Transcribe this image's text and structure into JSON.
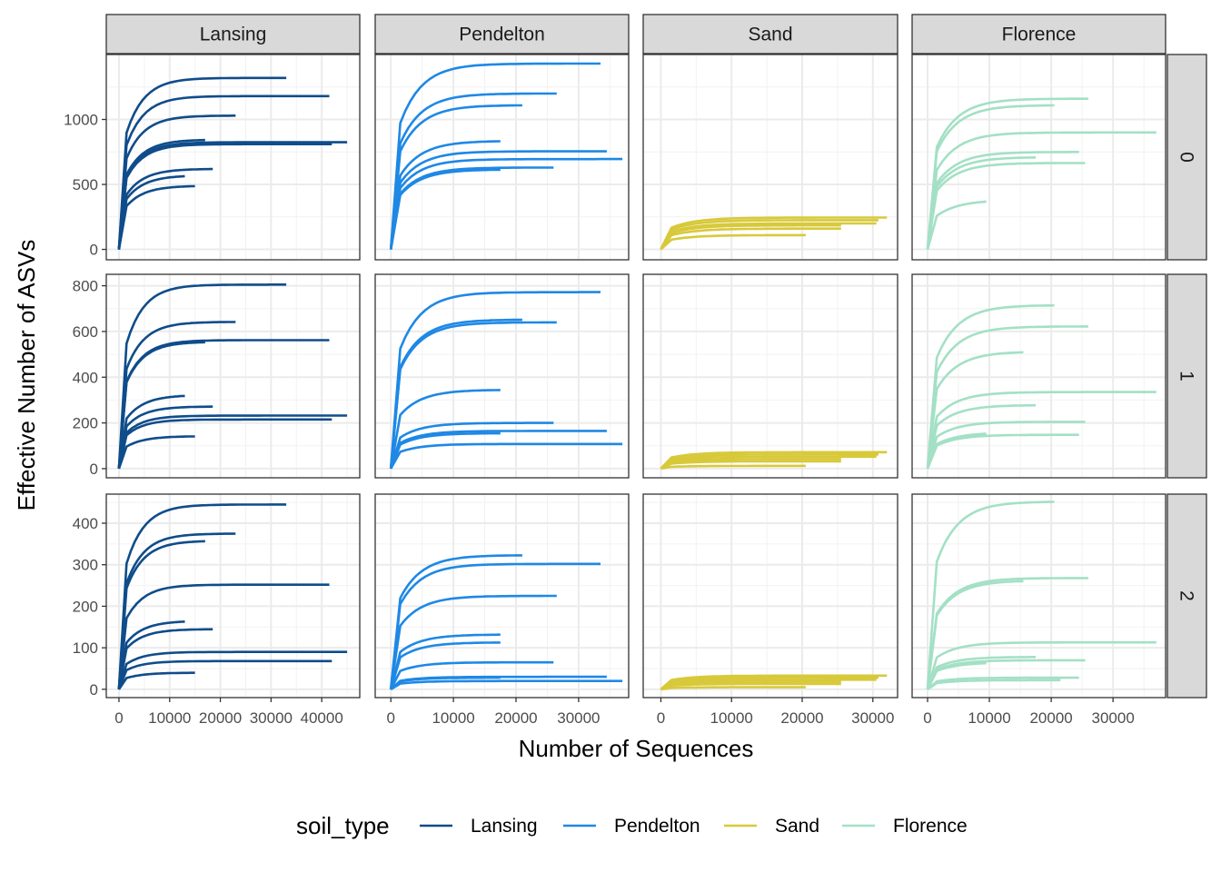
{
  "chart_data": {
    "type": "line",
    "xlabel": "Number of Sequences",
    "ylabel": "Effective Number of ASVs",
    "legend": {
      "title": "soil_type",
      "position": "bottom",
      "entries": [
        {
          "name": "Lansing",
          "color": "#0f4c8a"
        },
        {
          "name": "Pendelton",
          "color": "#1e88e5"
        },
        {
          "name": "Sand",
          "color": "#d8c93b"
        },
        {
          "name": "Florence",
          "color": "#a3e0c5"
        }
      ]
    },
    "columns": [
      "Lansing",
      "Pendelton",
      "Sand",
      "Florence"
    ],
    "rows": [
      "0",
      "1",
      "2"
    ],
    "grid": true,
    "column_xlim": [
      [
        -2500,
        47500
      ],
      [
        -2500,
        38000
      ],
      [
        -2500,
        33500
      ],
      [
        -2500,
        38500
      ]
    ],
    "column_xticks": [
      [
        0,
        10000,
        20000,
        30000,
        40000
      ],
      [
        0,
        10000,
        20000,
        30000
      ],
      [
        0,
        10000,
        20000,
        30000
      ],
      [
        0,
        10000,
        20000,
        30000
      ]
    ],
    "row_ylim": [
      [
        -80,
        1500
      ],
      [
        -40,
        850
      ],
      [
        -20,
        470
      ]
    ],
    "row_yticks": [
      [
        0,
        500,
        1000
      ],
      [
        0,
        200,
        400,
        600,
        800
      ],
      [
        0,
        100,
        200,
        300,
        400
      ]
    ],
    "panels": [
      {
        "column": "Lansing",
        "row": "0",
        "curves": [
          [
            33000,
            1320
          ],
          [
            41500,
            1180
          ],
          [
            23000,
            1030
          ],
          [
            17000,
            845
          ],
          [
            45000,
            825
          ],
          [
            42000,
            810
          ],
          [
            18500,
            620
          ],
          [
            13000,
            570
          ],
          [
            15000,
            490
          ]
        ]
      },
      {
        "column": "Pendelton",
        "row": "0",
        "curves": [
          [
            33500,
            1430
          ],
          [
            26500,
            1200
          ],
          [
            21000,
            1110
          ],
          [
            17500,
            835
          ],
          [
            34500,
            755
          ],
          [
            37000,
            695
          ],
          [
            26000,
            630
          ],
          [
            17500,
            615
          ]
        ]
      },
      {
        "column": "Sand",
        "row": "0",
        "curves": [
          [
            32000,
            245
          ],
          [
            30800,
            225
          ],
          [
            30500,
            200
          ],
          [
            25500,
            185
          ],
          [
            25500,
            160
          ],
          [
            20500,
            110
          ]
        ]
      },
      {
        "column": "Florence",
        "row": "0",
        "curves": [
          [
            26000,
            1160
          ],
          [
            20500,
            1110
          ],
          [
            37000,
            900
          ],
          [
            24500,
            750
          ],
          [
            17500,
            710
          ],
          [
            25500,
            665
          ],
          [
            9500,
            380
          ]
        ]
      },
      {
        "column": "Lansing",
        "row": "1",
        "curves": [
          [
            33000,
            805
          ],
          [
            23000,
            642
          ],
          [
            41500,
            562
          ],
          [
            17000,
            555
          ],
          [
            13000,
            322
          ],
          [
            18500,
            272
          ],
          [
            45000,
            232
          ],
          [
            42000,
            215
          ],
          [
            15000,
            142
          ]
        ]
      },
      {
        "column": "Pendelton",
        "row": "1",
        "curves": [
          [
            33500,
            772
          ],
          [
            21000,
            652
          ],
          [
            26500,
            640
          ],
          [
            17500,
            345
          ],
          [
            26000,
            200
          ],
          [
            34500,
            165
          ],
          [
            17500,
            155
          ],
          [
            37000,
            108
          ]
        ]
      },
      {
        "column": "Sand",
        "row": "1",
        "curves": [
          [
            32000,
            72
          ],
          [
            30800,
            62
          ],
          [
            30500,
            52
          ],
          [
            25500,
            42
          ],
          [
            25500,
            32
          ],
          [
            20500,
            12
          ]
        ]
      },
      {
        "column": "Florence",
        "row": "1",
        "curves": [
          [
            20500,
            715
          ],
          [
            26000,
            622
          ],
          [
            15500,
            512
          ],
          [
            37000,
            335
          ],
          [
            17500,
            278
          ],
          [
            25500,
            205
          ],
          [
            9500,
            158
          ],
          [
            24500,
            148
          ]
        ]
      },
      {
        "column": "Lansing",
        "row": "2",
        "curves": [
          [
            33000,
            445
          ],
          [
            23000,
            375
          ],
          [
            17000,
            358
          ],
          [
            41500,
            252
          ],
          [
            13000,
            165
          ],
          [
            18500,
            145
          ],
          [
            45000,
            90
          ],
          [
            42000,
            68
          ],
          [
            15000,
            40
          ]
        ]
      },
      {
        "column": "Pendelton",
        "row": "2",
        "curves": [
          [
            21000,
            323
          ],
          [
            33500,
            302
          ],
          [
            26500,
            225
          ],
          [
            17500,
            132
          ],
          [
            17500,
            113
          ],
          [
            26000,
            65
          ],
          [
            34500,
            30
          ],
          [
            37000,
            20
          ],
          [
            17500,
            28
          ]
        ]
      },
      {
        "column": "Sand",
        "row": "2",
        "curves": [
          [
            32000,
            33
          ],
          [
            30800,
            28
          ],
          [
            30500,
            23
          ],
          [
            25500,
            18
          ],
          [
            25500,
            13
          ],
          [
            20500,
            5
          ]
        ]
      },
      {
        "column": "Florence",
        "row": "2",
        "curves": [
          [
            20500,
            452
          ],
          [
            26000,
            268
          ],
          [
            15500,
            262
          ],
          [
            37000,
            113
          ],
          [
            17500,
            78
          ],
          [
            25500,
            70
          ],
          [
            9500,
            65
          ],
          [
            24500,
            28
          ],
          [
            21500,
            22
          ]
        ]
      }
    ]
  }
}
